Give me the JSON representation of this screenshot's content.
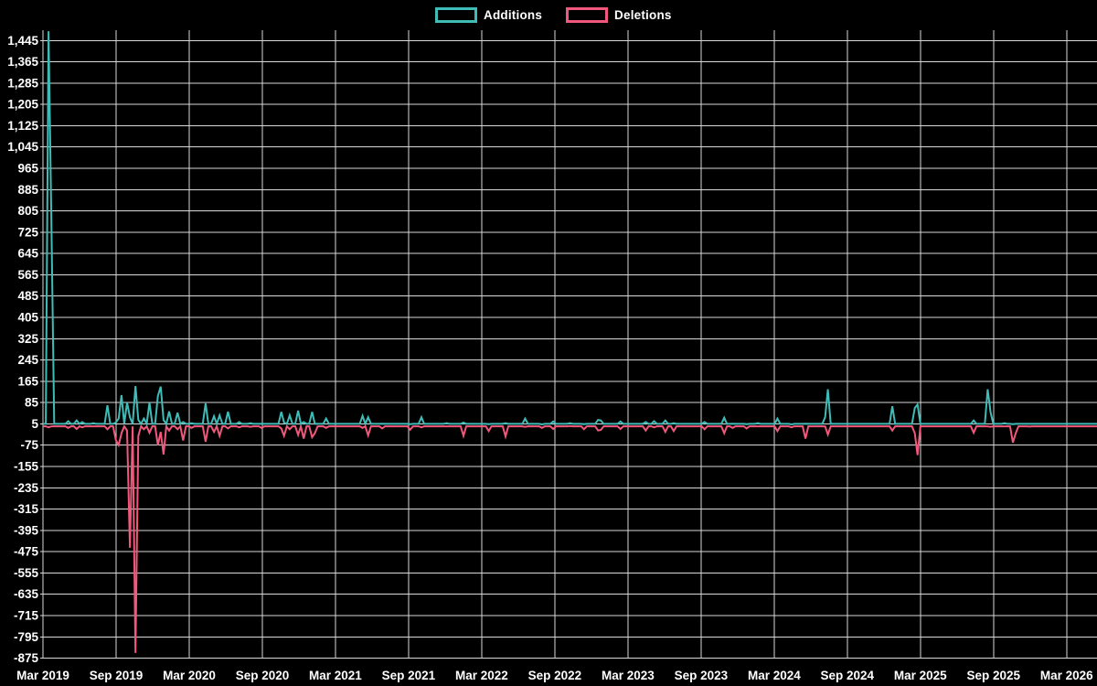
{
  "legend": {
    "items": [
      {
        "id": "additions",
        "label": "Additions",
        "color": "#3fbcb7"
      },
      {
        "id": "deletions",
        "label": "Deletions",
        "color": "#f2587c"
      }
    ]
  },
  "colors": {
    "background": "#000000",
    "grid": "#d9d9d9",
    "text": "#ffffff",
    "additions": "#3fbcb7",
    "deletions": "#f2587c"
  },
  "chart_data": {
    "type": "line",
    "legend_entries": [
      "Additions",
      "Deletions"
    ],
    "x_axis": {
      "tick_labels": [
        "Mar 2019",
        "Sep 2019",
        "Mar 2020",
        "Sep 2020",
        "Mar 2021",
        "Sep 2021",
        "Mar 2022",
        "Sep 2022",
        "Mar 2023",
        "Sep 2023",
        "Mar 2024",
        "Sep 2024",
        "Mar 2025",
        "Sep 2025",
        "Mar 2026"
      ]
    },
    "y_axis": {
      "tick_labels": [
        "1,445",
        "1,365",
        "1,285",
        "1,205",
        "1,125",
        "1,045",
        "965",
        "885",
        "805",
        "725",
        "645",
        "565",
        "485",
        "405",
        "325",
        "245",
        "165",
        "85",
        "5",
        "-75",
        "-155",
        "-235",
        "-315",
        "-395",
        "-475",
        "-555",
        "-635",
        "-715",
        "-795",
        "-875"
      ],
      "tick_values": [
        1445,
        1365,
        1285,
        1205,
        1125,
        1045,
        965,
        885,
        805,
        725,
        645,
        565,
        485,
        405,
        325,
        245,
        165,
        85,
        5,
        -75,
        -155,
        -235,
        -315,
        -395,
        -475,
        -555,
        -635,
        -715,
        -795,
        -875
      ],
      "min": -875,
      "max": 1445,
      "step": 80
    },
    "grid": true,
    "legend_position": "top-center",
    "weeks_total": 376,
    "baseline": {
      "additions": 5,
      "deletions": -4
    },
    "additions_spikes": [
      [
        2,
        1480
      ],
      [
        3,
        770
      ],
      [
        9,
        15
      ],
      [
        12,
        18
      ],
      [
        14,
        12
      ],
      [
        18,
        8
      ],
      [
        23,
        75
      ],
      [
        26,
        10
      ],
      [
        27,
        25
      ],
      [
        28,
        113
      ],
      [
        30,
        85
      ],
      [
        31,
        30
      ],
      [
        33,
        147
      ],
      [
        34,
        20
      ],
      [
        36,
        25
      ],
      [
        38,
        85
      ],
      [
        41,
        110
      ],
      [
        42,
        145
      ],
      [
        43,
        20
      ],
      [
        45,
        52
      ],
      [
        48,
        47
      ],
      [
        50,
        12
      ],
      [
        53,
        8
      ],
      [
        58,
        82
      ],
      [
        61,
        34
      ],
      [
        63,
        37
      ],
      [
        66,
        51
      ],
      [
        70,
        12
      ],
      [
        74,
        8
      ],
      [
        78,
        6
      ],
      [
        85,
        50
      ],
      [
        86,
        10
      ],
      [
        88,
        37
      ],
      [
        91,
        55
      ],
      [
        93,
        12
      ],
      [
        96,
        50
      ],
      [
        101,
        25
      ],
      [
        114,
        35
      ],
      [
        116,
        30
      ],
      [
        121,
        6
      ],
      [
        131,
        4
      ],
      [
        135,
        30
      ],
      [
        144,
        8
      ],
      [
        150,
        10
      ],
      [
        159,
        4
      ],
      [
        165,
        8
      ],
      [
        172,
        25
      ],
      [
        178,
        3
      ],
      [
        182,
        14
      ],
      [
        188,
        8
      ],
      [
        193,
        4
      ],
      [
        198,
        20
      ],
      [
        199,
        18
      ],
      [
        206,
        14
      ],
      [
        215,
        12
      ],
      [
        218,
        15
      ],
      [
        222,
        18
      ],
      [
        225,
        8
      ],
      [
        236,
        12
      ],
      [
        243,
        28
      ],
      [
        246,
        6
      ],
      [
        251,
        4
      ],
      [
        255,
        8
      ],
      [
        262,
        25
      ],
      [
        267,
        3
      ],
      [
        272,
        6
      ],
      [
        279,
        30
      ],
      [
        280,
        135
      ],
      [
        303,
        71
      ],
      [
        311,
        65
      ],
      [
        312,
        78
      ],
      [
        332,
        18
      ],
      [
        337,
        135
      ],
      [
        338,
        50
      ],
      [
        343,
        8
      ],
      [
        346,
        4
      ]
    ],
    "deletions_spikes": [
      [
        2,
        -8
      ],
      [
        9,
        -10
      ],
      [
        12,
        -14
      ],
      [
        14,
        -8
      ],
      [
        23,
        -15
      ],
      [
        26,
        -55
      ],
      [
        27,
        -75
      ],
      [
        28,
        -30
      ],
      [
        30,
        -20
      ],
      [
        31,
        -460
      ],
      [
        33,
        -855
      ],
      [
        34,
        -40
      ],
      [
        36,
        -15
      ],
      [
        38,
        -28
      ],
      [
        41,
        -75
      ],
      [
        42,
        -25
      ],
      [
        43,
        -110
      ],
      [
        45,
        -20
      ],
      [
        48,
        -15
      ],
      [
        50,
        -57
      ],
      [
        53,
        -10
      ],
      [
        58,
        -62
      ],
      [
        61,
        -25
      ],
      [
        63,
        -40
      ],
      [
        66,
        -12
      ],
      [
        70,
        -8
      ],
      [
        74,
        -6
      ],
      [
        78,
        -10
      ],
      [
        85,
        -12
      ],
      [
        86,
        -40
      ],
      [
        88,
        -15
      ],
      [
        91,
        -36
      ],
      [
        93,
        -50
      ],
      [
        96,
        -45
      ],
      [
        97,
        -30
      ],
      [
        101,
        -10
      ],
      [
        114,
        -10
      ],
      [
        116,
        -38
      ],
      [
        121,
        -12
      ],
      [
        131,
        -17
      ],
      [
        135,
        -8
      ],
      [
        144,
        -4
      ],
      [
        150,
        -40
      ],
      [
        159,
        -22
      ],
      [
        165,
        -42
      ],
      [
        172,
        -6
      ],
      [
        178,
        -10
      ],
      [
        182,
        -14
      ],
      [
        188,
        -3
      ],
      [
        193,
        -15
      ],
      [
        198,
        -20
      ],
      [
        199,
        -18
      ],
      [
        206,
        -14
      ],
      [
        215,
        -20
      ],
      [
        218,
        -8
      ],
      [
        222,
        -25
      ],
      [
        225,
        -22
      ],
      [
        236,
        -15
      ],
      [
        243,
        -30
      ],
      [
        246,
        -10
      ],
      [
        251,
        -12
      ],
      [
        262,
        -22
      ],
      [
        267,
        -8
      ],
      [
        272,
        -50
      ],
      [
        280,
        -35
      ],
      [
        303,
        -20
      ],
      [
        311,
        -30
      ],
      [
        312,
        -112
      ],
      [
        332,
        -28
      ],
      [
        338,
        -6
      ],
      [
        346,
        -65
      ],
      [
        347,
        -30
      ],
      [
        352,
        -5
      ]
    ]
  }
}
